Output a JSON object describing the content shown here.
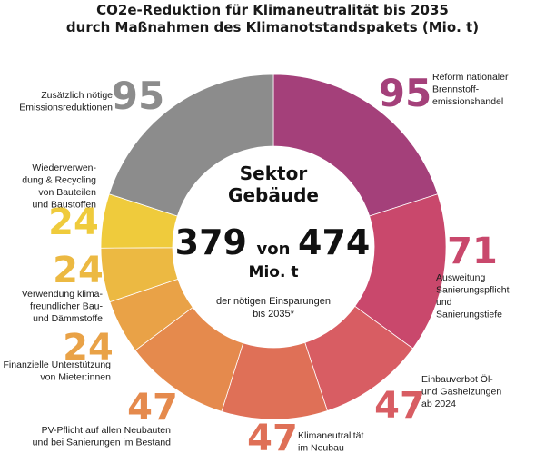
{
  "chart_data": {
    "type": "pie",
    "variant": "donut",
    "title": [
      "CO2e-Reduktion für Klimaneutralität bis 2035",
      "durch Maßnahmen des Klimanotstandspakets (Mio. t)"
    ],
    "center": {
      "title": [
        "Sektor",
        "Gebäude"
      ],
      "value": "379",
      "connector": "von",
      "total": "474",
      "unit": "Mio. t",
      "note": [
        "der nötigen Einsparungen",
        "bis 2035*"
      ]
    },
    "segments": [
      {
        "value": 95,
        "label": [
          "Reform nationaler",
          "Brennstoff-",
          "emissionshandel"
        ],
        "color": "#a4407a"
      },
      {
        "value": 71,
        "label": [
          "Ausweitung",
          "Sanierungspflicht",
          "und",
          "Sanierungstiefe"
        ],
        "color": "#c9486c"
      },
      {
        "value": 47,
        "label": [
          "Einbauverbot Öl-",
          "und Gasheizungen",
          "ab 2024"
        ],
        "color": "#d85d63"
      },
      {
        "value": 47,
        "label": [
          "Klimaneutralität",
          "im Neubau"
        ],
        "color": "#df7057"
      },
      {
        "value": 47,
        "label": [
          "PV-Pflicht auf allen Neubauten",
          "und bei Sanierungen im Bestand"
        ],
        "color": "#e58a4d"
      },
      {
        "value": 24,
        "label": [
          "Finanzielle Unterstützung",
          "von Mieter:innen"
        ],
        "color": "#e9a247"
      },
      {
        "value": 24,
        "label": [
          "Verwendung klima-",
          "freundlicher Bau-",
          "und Dämmstoffe"
        ],
        "color": "#ecb942"
      },
      {
        "value": 24,
        "label": [
          "Wiederverwen-",
          "dung & Recycling",
          "von Bauteilen",
          "und Baustoffen"
        ],
        "color": "#efcb3c"
      },
      {
        "value": 95,
        "label": [
          "Zusätzlich nötige",
          "Emissionsreduktionen"
        ],
        "color": "#8c8c8c"
      }
    ]
  }
}
